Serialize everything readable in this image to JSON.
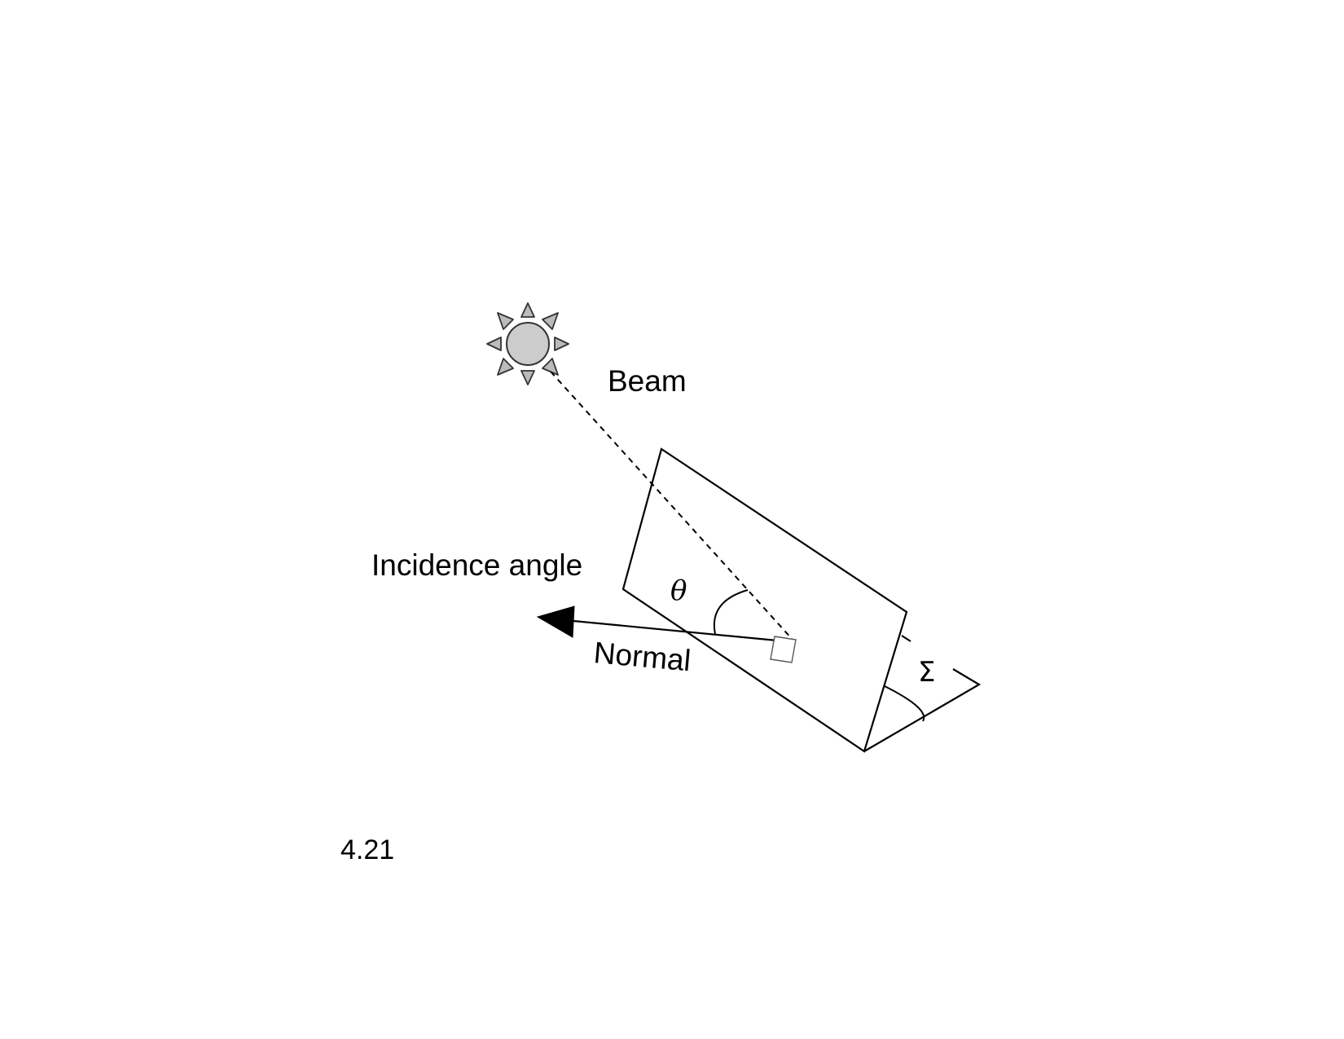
{
  "diagram": {
    "labels": {
      "beam": "Beam",
      "incidence_angle": "Incidence angle",
      "theta": "θ",
      "normal": "Normal",
      "sigma": "Σ",
      "figure_number": "4.21"
    },
    "icons": {
      "sun": "sun-icon",
      "arrowhead": "arrowhead-icon"
    },
    "colors": {
      "stroke": "#000000",
      "sun_fill": "#cccccc",
      "sun_stroke": "#333333",
      "ray_fill": "#bbbbbb"
    }
  }
}
